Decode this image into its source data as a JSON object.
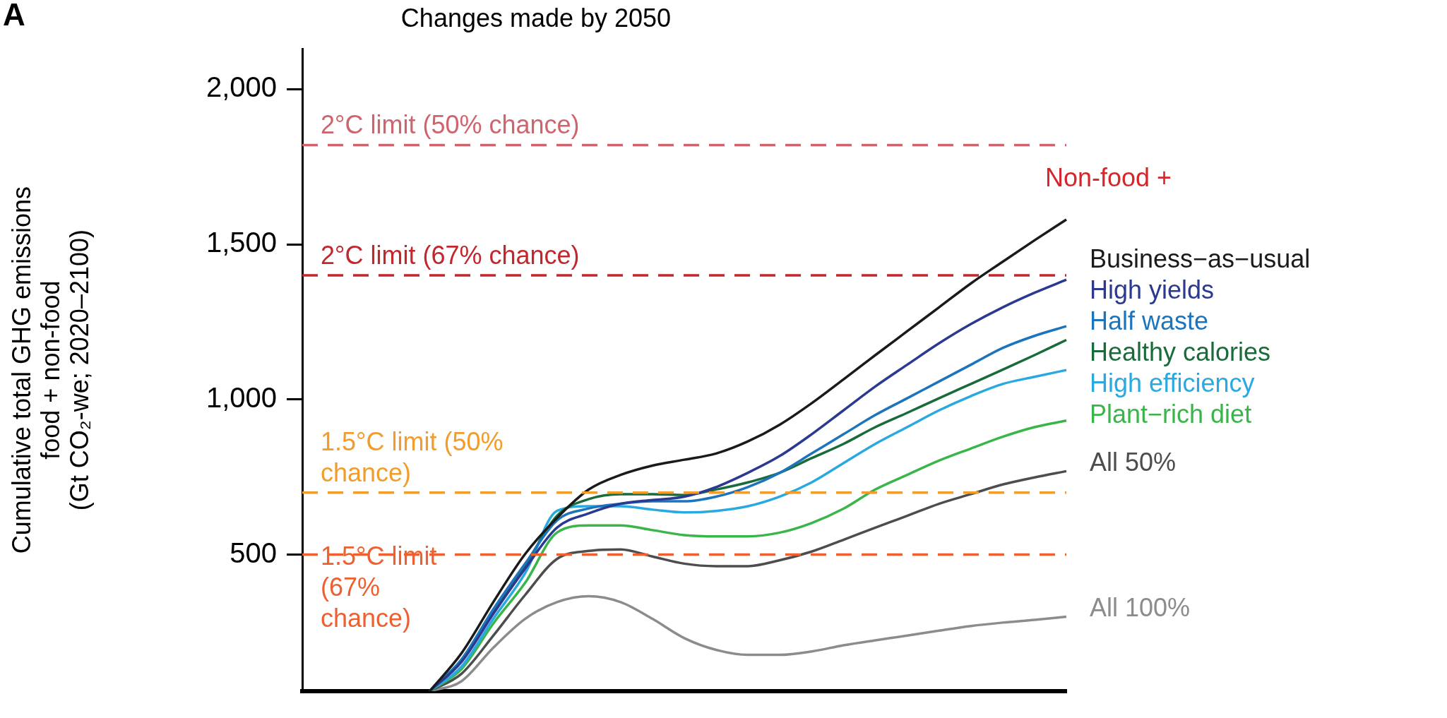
{
  "chart_data": {
    "type": "line",
    "title": "Changes made by 2050",
    "ylabel": "Cumulative total GHG emissions\nfood + non-food\n(Gt CO₂-we; 2020–2100)",
    "legend_title": "Non-food +",
    "annotations": [
      "A"
    ],
    "categories": [
      null,
      null,
      null,
      null,
      null,
      null,
      null,
      null,
      null,
      null,
      null,
      null,
      null,
      null,
      null,
      null,
      null,
      null,
      null,
      null,
      null,
      null,
      null,
      null,
      null
    ],
    "series": [
      {
        "name": "Business−as−usual",
        "color": "#1a1a1a",
        "values": [
          null,
          null,
          null,
          null,
          60,
          182,
          347,
          502,
          618,
          710,
          757,
          787,
          806,
          826,
          865,
          919,
          988,
          1065,
          1143,
          1220,
          1297,
          1374,
          1444,
          1513,
          1580
        ]
      },
      {
        "name": "High yields",
        "color": "#2b3990",
        "values": [
          null,
          null,
          null,
          null,
          60,
          154,
          309,
          455,
          587,
          633,
          664,
          676,
          687,
          718,
          764,
          818,
          888,
          965,
          1042,
          1112,
          1181,
          1243,
          1297,
          1344,
          1386
        ]
      },
      {
        "name": "Half waste",
        "color": "#1c75bc",
        "values": [
          null,
          null,
          null,
          null,
          60,
          162,
          324,
          471,
          610,
          649,
          664,
          672,
          672,
          687,
          718,
          764,
          826,
          888,
          950,
          1004,
          1058,
          1112,
          1166,
          1205,
          1236
        ]
      },
      {
        "name": "Healthy calories",
        "color": "#1a6b3a",
        "values": [
          null,
          null,
          null,
          null,
          60,
          160,
          318,
          465,
          625,
          679,
          695,
          695,
          692,
          710,
          733,
          764,
          811,
          857,
          911,
          957,
          1004,
          1050,
          1096,
          1143,
          1192
        ]
      },
      {
        "name": "High efficiency",
        "color": "#29a9e0",
        "values": [
          null,
          null,
          null,
          null,
          60,
          139,
          293,
          440,
          641,
          656,
          656,
          645,
          636,
          641,
          656,
          687,
          733,
          795,
          857,
          911,
          965,
          1011,
          1050,
          1073,
          1095
        ]
      },
      {
        "name": "Plant−rich diet",
        "color": "#39b54a",
        "values": [
          null,
          null,
          null,
          null,
          60,
          131,
          278,
          409,
          571,
          594,
          594,
          579,
          563,
          559,
          559,
          571,
          602,
          648,
          710,
          757,
          803,
          842,
          880,
          911,
          932
        ]
      },
      {
        "name": "All 50%",
        "color": "#4d4d4d",
        "values": [
          null,
          null,
          null,
          null,
          60,
          116,
          239,
          370,
          486,
          512,
          517,
          494,
          471,
          463,
          463,
          482,
          510,
          548,
          587,
          625,
          664,
          695,
          726,
          749,
          769
        ]
      },
      {
        "name": "All 100%",
        "color": "#8c8c8c",
        "values": [
          null,
          null,
          null,
          null,
          60,
          92,
          200,
          293,
          347,
          366,
          347,
          293,
          231,
          193,
          177,
          177,
          188,
          208,
          224,
          239,
          255,
          270,
          281,
          290,
          300
        ]
      }
    ],
    "ylim": [
      60,
      2130
    ],
    "yticks": [
      {
        "value": 500,
        "label": "500"
      },
      {
        "value": 1000,
        "label": "1,000"
      },
      {
        "value": 1500,
        "label": "1,500"
      },
      {
        "value": 2000,
        "label": "2,000"
      }
    ],
    "ref_lines": [
      {
        "axis": "y",
        "value": 1820,
        "label": "2°C limit (50% chance)",
        "color": "#d0646e",
        "line_style": "dashed"
      },
      {
        "axis": "y",
        "value": 1400,
        "label": "2°C limit (67% chance)",
        "color": "#c1272d",
        "line_style": "dashed"
      },
      {
        "axis": "y",
        "value": 700,
        "label": "1.5°C limit (50% chance)",
        "color": "#f29c2b",
        "line_style": "dashed"
      },
      {
        "axis": "y",
        "value": 500,
        "label": "1.5°C limit (67% chance)",
        "color": "#ef6030",
        "line_style": "dashed"
      }
    ],
    "tick_labels": "y",
    "grid": false,
    "legend": false,
    "marker": "none",
    "line_style": "solid"
  }
}
